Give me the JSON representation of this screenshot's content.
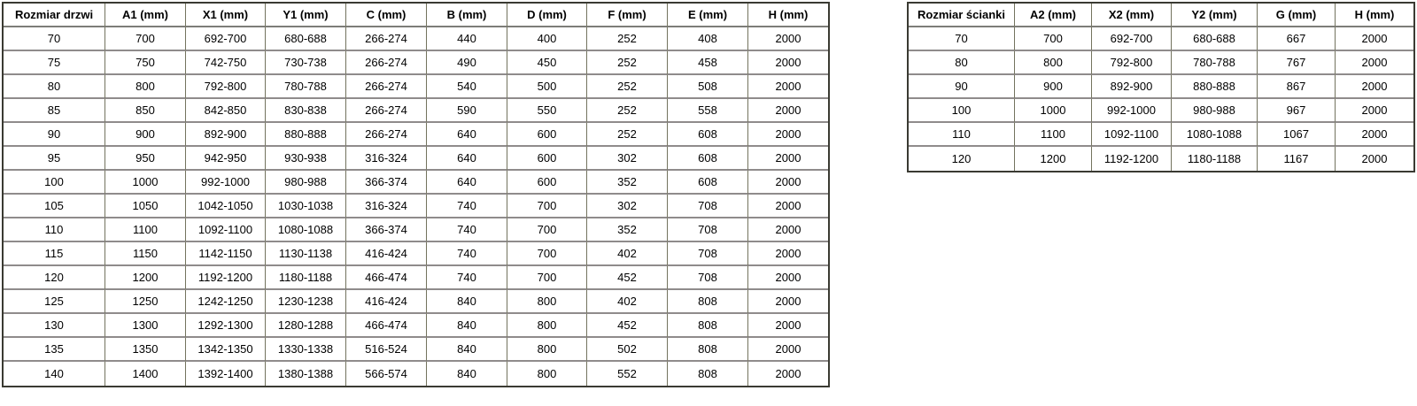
{
  "colors": {
    "background": "#ffffff",
    "text": "#000000",
    "outer_border": "#3a3a32",
    "vertical_grid": "#73735e",
    "horizontal_grid": "#8f8b8b"
  },
  "chart_data": [
    {
      "type": "table",
      "name": "door-size-table",
      "title": "Rozmiar drzwi",
      "headers": [
        "Rozmiar drzwi",
        "A1 (mm)",
        "X1 (mm)",
        "Y1 (mm)",
        "C (mm)",
        "B (mm)",
        "D (mm)",
        "F (mm)",
        "E (mm)",
        "H (mm)"
      ],
      "rows": [
        [
          "70",
          "700",
          "692-700",
          "680-688",
          "266-274",
          "440",
          "400",
          "252",
          "408",
          "2000"
        ],
        [
          "75",
          "750",
          "742-750",
          "730-738",
          "266-274",
          "490",
          "450",
          "252",
          "458",
          "2000"
        ],
        [
          "80",
          "800",
          "792-800",
          "780-788",
          "266-274",
          "540",
          "500",
          "252",
          "508",
          "2000"
        ],
        [
          "85",
          "850",
          "842-850",
          "830-838",
          "266-274",
          "590",
          "550",
          "252",
          "558",
          "2000"
        ],
        [
          "90",
          "900",
          "892-900",
          "880-888",
          "266-274",
          "640",
          "600",
          "252",
          "608",
          "2000"
        ],
        [
          "95",
          "950",
          "942-950",
          "930-938",
          "316-324",
          "640",
          "600",
          "302",
          "608",
          "2000"
        ],
        [
          "100",
          "1000",
          "992-1000",
          "980-988",
          "366-374",
          "640",
          "600",
          "352",
          "608",
          "2000"
        ],
        [
          "105",
          "1050",
          "1042-1050",
          "1030-1038",
          "316-324",
          "740",
          "700",
          "302",
          "708",
          "2000"
        ],
        [
          "110",
          "1100",
          "1092-1100",
          "1080-1088",
          "366-374",
          "740",
          "700",
          "352",
          "708",
          "2000"
        ],
        [
          "115",
          "1150",
          "1142-1150",
          "1130-1138",
          "416-424",
          "740",
          "700",
          "402",
          "708",
          "2000"
        ],
        [
          "120",
          "1200",
          "1192-1200",
          "1180-1188",
          "466-474",
          "740",
          "700",
          "452",
          "708",
          "2000"
        ],
        [
          "125",
          "1250",
          "1242-1250",
          "1230-1238",
          "416-424",
          "840",
          "800",
          "402",
          "808",
          "2000"
        ],
        [
          "130",
          "1300",
          "1292-1300",
          "1280-1288",
          "466-474",
          "840",
          "800",
          "452",
          "808",
          "2000"
        ],
        [
          "135",
          "1350",
          "1342-1350",
          "1330-1338",
          "516-524",
          "840",
          "800",
          "502",
          "808",
          "2000"
        ],
        [
          "140",
          "1400",
          "1392-1400",
          "1380-1388",
          "566-574",
          "840",
          "800",
          "552",
          "808",
          "2000"
        ]
      ]
    },
    {
      "type": "table",
      "name": "wall-size-table",
      "title": "Rozmiar ścianki",
      "headers": [
        "Rozmiar ścianki",
        "A2 (mm)",
        "X2 (mm)",
        "Y2 (mm)",
        "G (mm)",
        "H (mm)"
      ],
      "rows": [
        [
          "70",
          "700",
          "692-700",
          "680-688",
          "667",
          "2000"
        ],
        [
          "80",
          "800",
          "792-800",
          "780-788",
          "767",
          "2000"
        ],
        [
          "90",
          "900",
          "892-900",
          "880-888",
          "867",
          "2000"
        ],
        [
          "100",
          "1000",
          "992-1000",
          "980-988",
          "967",
          "2000"
        ],
        [
          "110",
          "1100",
          "1092-1100",
          "1080-1088",
          "1067",
          "2000"
        ],
        [
          "120",
          "1200",
          "1192-1200",
          "1180-1188",
          "1167",
          "2000"
        ]
      ]
    }
  ]
}
